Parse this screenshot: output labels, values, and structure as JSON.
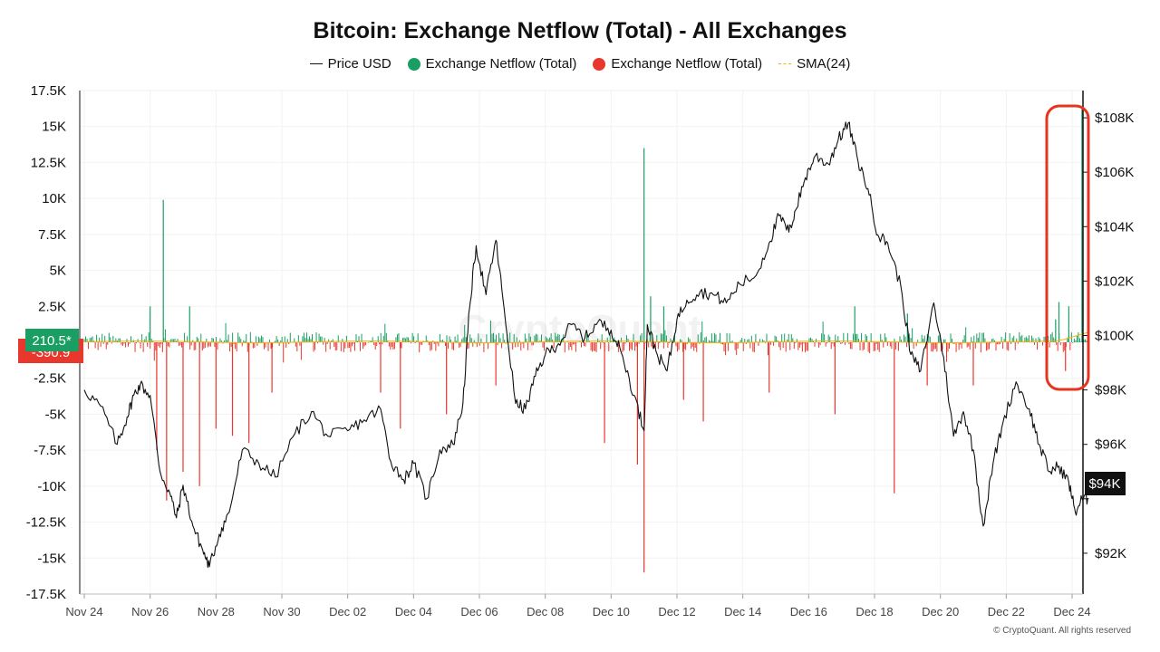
{
  "header": {
    "title": "Bitcoin: Exchange Netflow (Total) - All Exchanges"
  },
  "legend": [
    {
      "label": "Price USD",
      "kind": "line",
      "color": "#111111"
    },
    {
      "label": "Exchange Netflow (Total)",
      "kind": "dot",
      "color": "#1a9e63"
    },
    {
      "label": "Exchange Netflow (Total)",
      "kind": "dot",
      "color": "#e8372c"
    },
    {
      "label": "SMA(24)",
      "kind": "dash",
      "color": "#f0b400"
    }
  ],
  "badges": {
    "current_netflow": "210.5*",
    "current_negative": "-390.9",
    "current_price": "$94K"
  },
  "footer": {
    "credit": "© CryptoQuant. All rights reserved"
  },
  "watermark": "CryptoQuant",
  "chart_data": {
    "type": "bar+line",
    "title": "Bitcoin: Exchange Netflow (Total) - All Exchanges",
    "x_ticks": [
      "Nov 24",
      "Nov 26",
      "Nov 28",
      "Nov 30",
      "Dec 02",
      "Dec 04",
      "Dec 06",
      "Dec 08",
      "Dec 10",
      "Dec 12",
      "Dec 14",
      "Dec 16",
      "Dec 18",
      "Dec 20",
      "Dec 22",
      "Dec 24"
    ],
    "x_range_days": [
      0,
      30.5
    ],
    "y_left": {
      "ticks": [
        17500,
        15000,
        12500,
        10000,
        7500,
        5000,
        2500,
        0,
        -2500,
        -5000,
        -7500,
        -10000,
        -12500,
        -15000,
        -17500
      ],
      "labels": [
        "17.5K",
        "15K",
        "12.5K",
        "10K",
        "7.5K",
        "5K",
        "2.5K",
        "",
        "-2.5K",
        "-5K",
        "-7.5K",
        "-10K",
        "-12.5K",
        "-15K",
        "-17.5K"
      ],
      "ylim": [
        -17500,
        17500
      ]
    },
    "y_right": {
      "ticks": [
        92000,
        94000,
        96000,
        98000,
        100000,
        102000,
        104000,
        106000,
        108000
      ],
      "labels": [
        "$92K",
        "",
        "$96K",
        "$98K",
        "$100K",
        "$102K",
        "$104K",
        "$106K",
        "$108K"
      ],
      "ylim": [
        90500,
        109000
      ]
    },
    "colors": {
      "inflow": "#1a9e63",
      "outflow": "#e8372c",
      "price": "#111111",
      "sma": "#f0b400"
    },
    "netflow_spikes": [
      {
        "day": 2.0,
        "value": 2500
      },
      {
        "day": 2.4,
        "value": 9900
      },
      {
        "day": 2.2,
        "value": -7500
      },
      {
        "day": 2.5,
        "value": -11000
      },
      {
        "day": 3.0,
        "value": -9000
      },
      {
        "day": 3.2,
        "value": 2500
      },
      {
        "day": 3.5,
        "value": -10000
      },
      {
        "day": 4.0,
        "value": -6000
      },
      {
        "day": 4.5,
        "value": -6500
      },
      {
        "day": 5.0,
        "value": -7000
      },
      {
        "day": 5.7,
        "value": -3500
      },
      {
        "day": 9.0,
        "value": -3500
      },
      {
        "day": 9.6,
        "value": -6000
      },
      {
        "day": 11.0,
        "value": -5000
      },
      {
        "day": 12.5,
        "value": -3000
      },
      {
        "day": 15.8,
        "value": -7000
      },
      {
        "day": 16.8,
        "value": -8500
      },
      {
        "day": 17.0,
        "value": 13500
      },
      {
        "day": 17.0,
        "value": -16000
      },
      {
        "day": 17.2,
        "value": 3200
      },
      {
        "day": 17.6,
        "value": 2500
      },
      {
        "day": 18.2,
        "value": -4000
      },
      {
        "day": 18.8,
        "value": -5500
      },
      {
        "day": 20.8,
        "value": -3500
      },
      {
        "day": 22.8,
        "value": -5000
      },
      {
        "day": 23.4,
        "value": 2500
      },
      {
        "day": 24.6,
        "value": -10500
      },
      {
        "day": 25.0,
        "value": 2000
      },
      {
        "day": 25.6,
        "value": -3000
      },
      {
        "day": 27.0,
        "value": -3000
      },
      {
        "day": 29.5,
        "value": 1600
      },
      {
        "day": 29.8,
        "value": -2000
      },
      {
        "day": 29.6,
        "value": 2800
      },
      {
        "day": 29.9,
        "value": 2500
      },
      {
        "day": 30.3,
        "value": 16200
      },
      {
        "day": 30.4,
        "value": 210.5
      }
    ],
    "price": [
      {
        "day": 0.0,
        "value": 98000
      },
      {
        "day": 0.5,
        "value": 97400
      },
      {
        "day": 1.0,
        "value": 96000
      },
      {
        "day": 1.3,
        "value": 97000
      },
      {
        "day": 1.5,
        "value": 97800
      },
      {
        "day": 1.7,
        "value": 98200
      },
      {
        "day": 2.0,
        "value": 97800
      },
      {
        "day": 2.3,
        "value": 95000
      },
      {
        "day": 2.6,
        "value": 94200
      },
      {
        "day": 2.8,
        "value": 93300
      },
      {
        "day": 3.0,
        "value": 94500
      },
      {
        "day": 3.3,
        "value": 93000
      },
      {
        "day": 3.6,
        "value": 92100
      },
      {
        "day": 3.8,
        "value": 91500
      },
      {
        "day": 4.1,
        "value": 92700
      },
      {
        "day": 4.4,
        "value": 93500
      },
      {
        "day": 4.8,
        "value": 95800
      },
      {
        "day": 5.3,
        "value": 95300
      },
      {
        "day": 5.8,
        "value": 94800
      },
      {
        "day": 6.4,
        "value": 96400
      },
      {
        "day": 6.9,
        "value": 97200
      },
      {
        "day": 7.4,
        "value": 96300
      },
      {
        "day": 8.0,
        "value": 96500
      },
      {
        "day": 8.5,
        "value": 96900
      },
      {
        "day": 9.0,
        "value": 97300
      },
      {
        "day": 9.3,
        "value": 95400
      },
      {
        "day": 9.7,
        "value": 94700
      },
      {
        "day": 10.0,
        "value": 95300
      },
      {
        "day": 10.4,
        "value": 94000
      },
      {
        "day": 10.8,
        "value": 95800
      },
      {
        "day": 11.2,
        "value": 96000
      },
      {
        "day": 11.5,
        "value": 97500
      },
      {
        "day": 11.7,
        "value": 101000
      },
      {
        "day": 11.9,
        "value": 103300
      },
      {
        "day": 12.2,
        "value": 101500
      },
      {
        "day": 12.5,
        "value": 103500
      },
      {
        "day": 12.7,
        "value": 101500
      },
      {
        "day": 13.1,
        "value": 97500
      },
      {
        "day": 13.4,
        "value": 97300
      },
      {
        "day": 13.7,
        "value": 98500
      },
      {
        "day": 14.0,
        "value": 99300
      },
      {
        "day": 14.4,
        "value": 99700
      },
      {
        "day": 14.8,
        "value": 100400
      },
      {
        "day": 15.2,
        "value": 99900
      },
      {
        "day": 15.6,
        "value": 100500
      },
      {
        "day": 16.0,
        "value": 100200
      },
      {
        "day": 16.3,
        "value": 99400
      },
      {
        "day": 16.7,
        "value": 97800
      },
      {
        "day": 17.0,
        "value": 96500
      },
      {
        "day": 17.1,
        "value": 100400
      },
      {
        "day": 17.4,
        "value": 99300
      },
      {
        "day": 17.7,
        "value": 98700
      },
      {
        "day": 18.0,
        "value": 100600
      },
      {
        "day": 18.3,
        "value": 101300
      },
      {
        "day": 18.7,
        "value": 101600
      },
      {
        "day": 19.1,
        "value": 101500
      },
      {
        "day": 19.5,
        "value": 101200
      },
      {
        "day": 19.9,
        "value": 101900
      },
      {
        "day": 20.4,
        "value": 102200
      },
      {
        "day": 20.8,
        "value": 103400
      },
      {
        "day": 21.1,
        "value": 104400
      },
      {
        "day": 21.4,
        "value": 103800
      },
      {
        "day": 21.6,
        "value": 104600
      },
      {
        "day": 21.9,
        "value": 105800
      },
      {
        "day": 22.2,
        "value": 106600
      },
      {
        "day": 22.6,
        "value": 106300
      },
      {
        "day": 22.9,
        "value": 107200
      },
      {
        "day": 23.2,
        "value": 107800
      },
      {
        "day": 23.5,
        "value": 106400
      },
      {
        "day": 23.8,
        "value": 105400
      },
      {
        "day": 24.1,
        "value": 103700
      },
      {
        "day": 24.4,
        "value": 103400
      },
      {
        "day": 24.8,
        "value": 101800
      },
      {
        "day": 25.1,
        "value": 99300
      },
      {
        "day": 25.4,
        "value": 98700
      },
      {
        "day": 25.8,
        "value": 101200
      },
      {
        "day": 26.1,
        "value": 99200
      },
      {
        "day": 26.4,
        "value": 96300
      },
      {
        "day": 26.7,
        "value": 97200
      },
      {
        "day": 27.0,
        "value": 95800
      },
      {
        "day": 27.3,
        "value": 93000
      },
      {
        "day": 27.6,
        "value": 95300
      },
      {
        "day": 27.9,
        "value": 96800
      },
      {
        "day": 28.3,
        "value": 98300
      },
      {
        "day": 28.7,
        "value": 97300
      },
      {
        "day": 29.0,
        "value": 96000
      },
      {
        "day": 29.3,
        "value": 95000
      },
      {
        "day": 29.6,
        "value": 95200
      },
      {
        "day": 29.9,
        "value": 94600
      },
      {
        "day": 30.1,
        "value": 93500
      },
      {
        "day": 30.3,
        "value": 94000
      },
      {
        "day": 30.5,
        "value": 94000
      }
    ],
    "sma24_level": 30
  }
}
